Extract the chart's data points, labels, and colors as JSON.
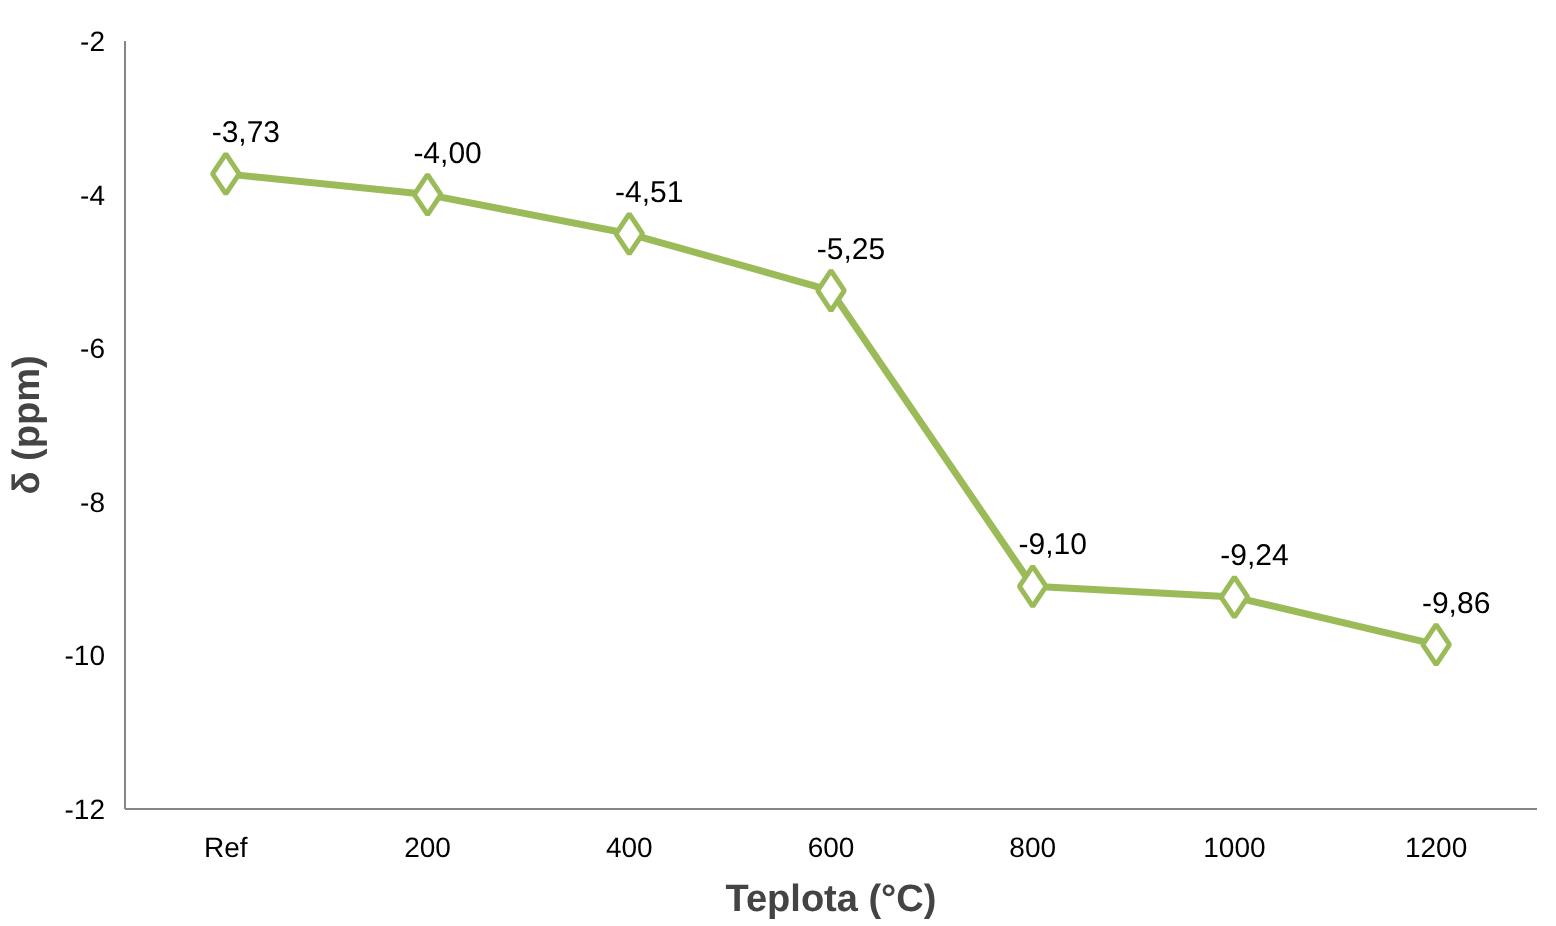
{
  "chart_data": {
    "type": "line",
    "xlabel": "Teplota (°C)",
    "ylabel": "δ (ppm)",
    "categories": [
      "Ref",
      "200",
      "400",
      "600",
      "800",
      "1000",
      "1200"
    ],
    "series": [
      {
        "color": "#9bbb59",
        "values": [
          -3.73,
          -4.0,
          -4.51,
          -5.25,
          -9.1,
          -9.24,
          -9.86
        ],
        "value_labels": [
          "-3,73",
          "-4,00",
          "-4,51",
          "-5,25",
          "-9,10",
          "-9,24",
          "-9,86"
        ]
      }
    ],
    "ylim": [
      -12,
      -2
    ],
    "yticks": [
      -12,
      -10,
      -8,
      -6,
      -4,
      -2
    ],
    "marker": "diamond",
    "line_style": "solid",
    "grid": false
  }
}
